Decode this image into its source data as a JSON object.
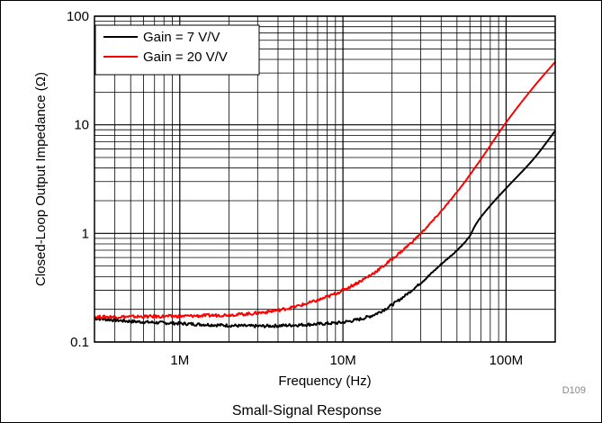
{
  "chart_data": {
    "type": "line",
    "title": "",
    "xlabel": "Frequency (Hz)",
    "ylabel": "Closed-Loop Output Impedance (Ω)",
    "caption": "Small-Signal Response",
    "figure_id": "D109",
    "x_scale": "log",
    "y_scale": "log",
    "xlim": [
      300000,
      200000000
    ],
    "ylim": [
      0.1,
      100
    ],
    "x_ticks": [
      {
        "value": 1000000,
        "label": "1M"
      },
      {
        "value": 10000000,
        "label": "10M"
      },
      {
        "value": 100000000,
        "label": "100M"
      }
    ],
    "y_ticks": [
      {
        "value": 0.1,
        "label": "0.1"
      },
      {
        "value": 1,
        "label": "1"
      },
      {
        "value": 10,
        "label": "10"
      },
      {
        "value": 100,
        "label": "100"
      }
    ],
    "grid": true,
    "legend_position": "top-left",
    "series": [
      {
        "name": "Gain = 7 V/V",
        "color": "#000000",
        "x": [
          300000,
          500000,
          1000000,
          2000000,
          3000000,
          5000000,
          8000000,
          10000000,
          15000000,
          20000000,
          30000000,
          40000000,
          50000000,
          60000000,
          65000000,
          80000000,
          100000000,
          150000000,
          200000000
        ],
        "y": [
          0.165,
          0.155,
          0.148,
          0.142,
          0.14,
          0.143,
          0.148,
          0.152,
          0.175,
          0.22,
          0.35,
          0.52,
          0.7,
          0.95,
          1.2,
          1.8,
          2.6,
          5.0,
          8.8
        ]
      },
      {
        "name": "Gain = 20 V/V",
        "color": "#ff0000",
        "x": [
          300000,
          500000,
          1000000,
          2000000,
          3000000,
          5000000,
          8000000,
          10000000,
          15000000,
          20000000,
          30000000,
          50000000,
          70000000,
          100000000,
          150000000,
          200000000
        ],
        "y": [
          0.17,
          0.171,
          0.173,
          0.178,
          0.185,
          0.21,
          0.26,
          0.3,
          0.42,
          0.58,
          1.0,
          2.4,
          4.8,
          10.5,
          23,
          38
        ]
      }
    ]
  }
}
